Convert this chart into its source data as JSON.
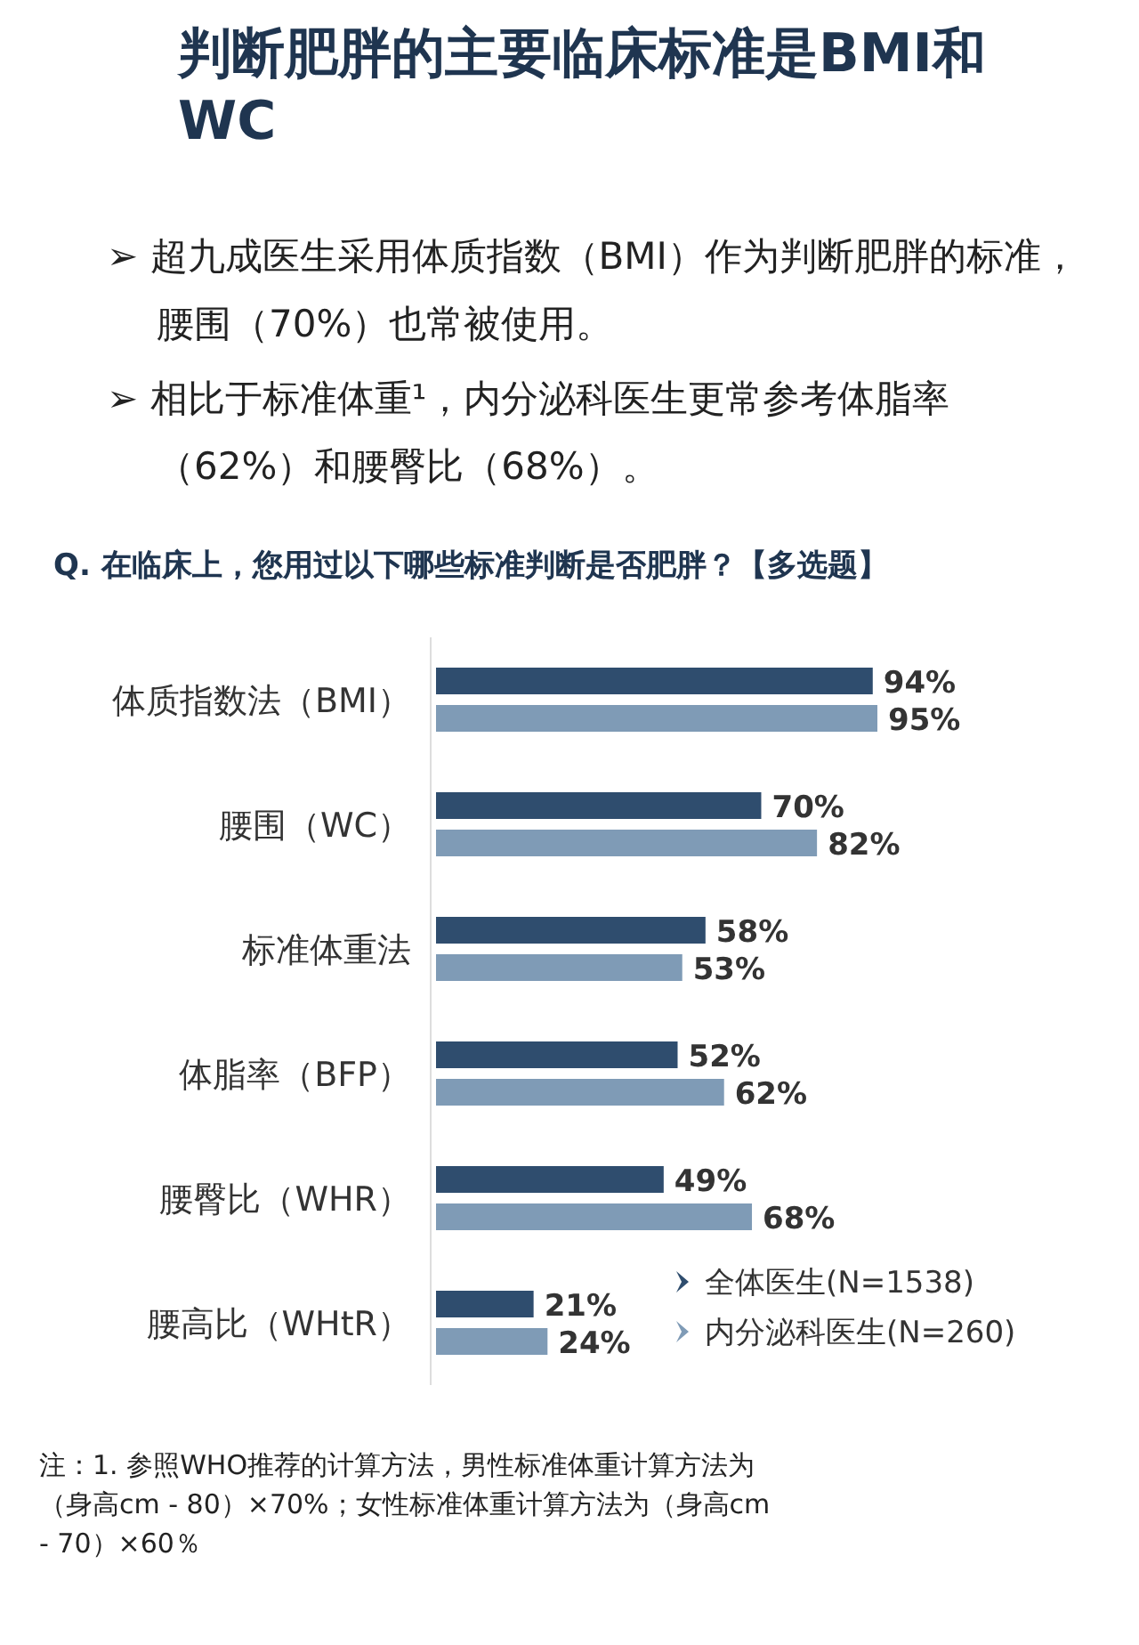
{
  "chart_data": {
    "type": "bar",
    "orientation": "horizontal",
    "title": "判断肥胖的主要临床标准是BMI和WC",
    "subtitle": "Q. 在临床上，您用过以下哪些标准判断是否肥胖？【多选题】",
    "categories": [
      "体质指数法（BMI）",
      "腰围（WC）",
      "标准体重法",
      "体脂率（BFP）",
      "腰臀比（WHR）",
      "腰高比（WHtR）"
    ],
    "series": [
      {
        "name": "全体医生(N=1538)",
        "color": "#2f4d6e",
        "values": [
          94,
          70,
          58,
          52,
          49,
          21
        ],
        "value_labels": [
          "94%",
          "70%",
          "58%",
          "52%",
          "49%",
          "21%"
        ]
      },
      {
        "name": "内分泌科医生(N=260)",
        "color": "#7f9bb6",
        "values": [
          95,
          82,
          53,
          62,
          68,
          24
        ],
        "value_labels": [
          "95%",
          "82%",
          "53%",
          "62%",
          "68%",
          "24%"
        ]
      }
    ],
    "legend": "bottom right",
    "annotations": [
      "➢ 超九成医生采用体质指数（BMI）作为判断肥胖的标准，腰围（70%）也常被使用。",
      "➢ 相比于标准体重¹，内分泌科医生更常参考体脂率（62%）和腰臀比（68%）。",
      "注：1. 参照WHO推荐的计算方法，男性标准体重计算方法为（身高cm - 80）×70%；女性标准体重计算方法为（身高cm - 70）×60％"
    ]
  }
}
